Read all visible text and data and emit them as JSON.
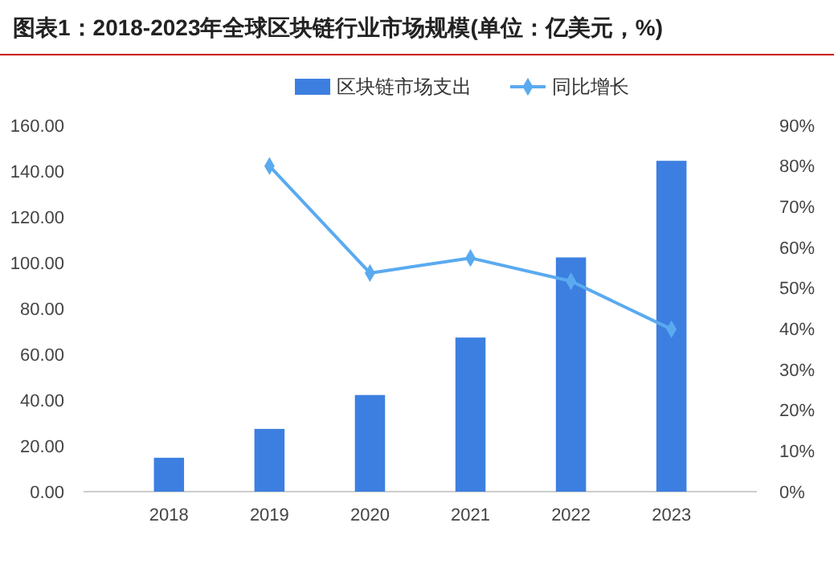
{
  "chart_data": {
    "type": "bar",
    "title": "图表1：2018-2023年全球区块链行业市场规模(单位：亿美元，%)",
    "categories": [
      "2018",
      "2019",
      "2020",
      "2021",
      "2022",
      "2023"
    ],
    "series": [
      {
        "name": "区块链市场支出",
        "color": "#3c7fe0",
        "values": [
          14.8,
          27.4,
          42.2,
          67.3,
          102.3,
          144.5
        ]
      },
      {
        "name": "同比增长",
        "type": "line",
        "axis": "y2",
        "color": "#5aaaf0",
        "marker": "diamond",
        "values": [
          null,
          80,
          53.7,
          57.4,
          51.7,
          39.9
        ]
      }
    ],
    "ylim": [
      0,
      160
    ],
    "yticks": [
      {
        "value": 0,
        "label": "0.00"
      },
      {
        "value": 20,
        "label": "20.00"
      },
      {
        "value": 40,
        "label": "40.00"
      },
      {
        "value": 60,
        "label": "60.00"
      },
      {
        "value": 80,
        "label": "80.00"
      },
      {
        "value": 100,
        "label": "100.00"
      },
      {
        "value": 120,
        "label": "120.00"
      },
      {
        "value": 140,
        "label": "140.00"
      },
      {
        "value": 160,
        "label": "160.00"
      }
    ],
    "y2lim": [
      0,
      90
    ],
    "y2ticks": [
      {
        "value": 0,
        "label": "0%"
      },
      {
        "value": 10,
        "label": "10%"
      },
      {
        "value": 20,
        "label": "20%"
      },
      {
        "value": 30,
        "label": "30%"
      },
      {
        "value": 40,
        "label": "40%"
      },
      {
        "value": 50,
        "label": "50%"
      },
      {
        "value": 60,
        "label": "60%"
      },
      {
        "value": 70,
        "label": "70%"
      },
      {
        "value": 80,
        "label": "80%"
      },
      {
        "value": 90,
        "label": "90%"
      }
    ],
    "legend": "top"
  }
}
